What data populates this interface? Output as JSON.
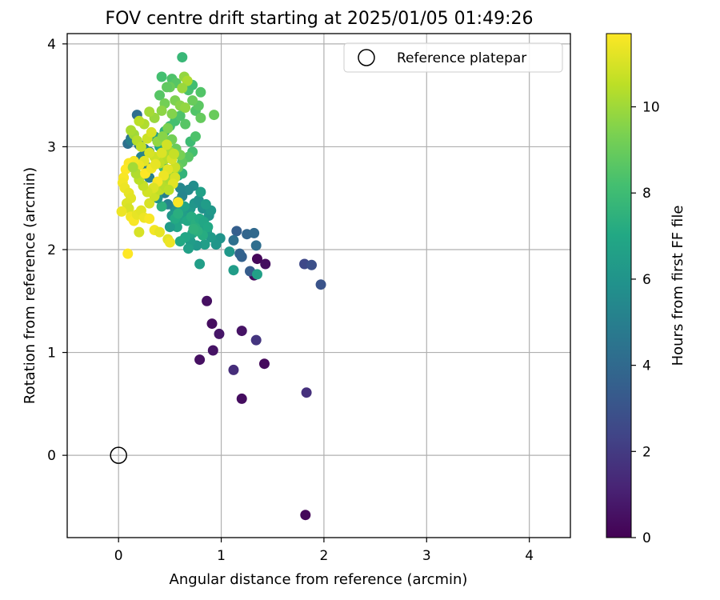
{
  "chart_data": {
    "type": "scatter",
    "title": "FOV centre drift starting at 2025/01/05 01:49:26",
    "xlabel": "Angular distance from reference (arcmin)",
    "ylabel": "Rotation from reference (arcmin)",
    "xlim": [
      -0.5,
      4.4
    ],
    "ylim": [
      -0.8,
      4.1
    ],
    "xticks": [
      0,
      1,
      2,
      3,
      4
    ],
    "yticks": [
      0,
      1,
      2,
      3,
      4
    ],
    "grid": true,
    "legend": {
      "placement": "top-right",
      "entries": [
        "Reference platepar"
      ]
    },
    "reference_point": {
      "label": "Reference platepar",
      "x": 0,
      "y": 0
    },
    "colorbar": {
      "label": "Hours from first FF file",
      "min": 0,
      "max": 11.7,
      "ticks": [
        0,
        2,
        4,
        6,
        8,
        10
      ],
      "colormap": "viridis"
    },
    "columns": [
      "x",
      "y",
      "hours"
    ],
    "points": [
      [
        1.82,
        -0.58,
        0.2
      ],
      [
        1.2,
        0.55,
        0.4
      ],
      [
        1.83,
        0.61,
        1.6
      ],
      [
        1.12,
        0.83,
        1.5
      ],
      [
        0.79,
        0.93,
        0.5
      ],
      [
        1.42,
        0.89,
        0.3
      ],
      [
        0.92,
        1.02,
        0.6
      ],
      [
        1.34,
        1.12,
        1.8
      ],
      [
        0.91,
        1.28,
        0.4
      ],
      [
        0.98,
        1.18,
        0.7
      ],
      [
        1.2,
        1.21,
        0.6
      ],
      [
        0.86,
        1.5,
        0.5
      ],
      [
        1.32,
        1.75,
        0.3
      ],
      [
        1.35,
        1.91,
        0.2
      ],
      [
        1.43,
        1.86,
        0.4
      ],
      [
        1.81,
        1.86,
        2.5
      ],
      [
        1.88,
        1.85,
        2.8
      ],
      [
        1.97,
        1.66,
        3.0
      ],
      [
        1.28,
        1.79,
        3.4
      ],
      [
        1.2,
        1.93,
        3.6
      ],
      [
        1.18,
        1.96,
        3.7
      ],
      [
        1.15,
        2.18,
        3.5
      ],
      [
        1.25,
        2.15,
        3.8
      ],
      [
        1.32,
        2.16,
        4.0
      ],
      [
        1.34,
        2.04,
        4.2
      ],
      [
        1.12,
        2.09,
        4.3
      ],
      [
        1.08,
        1.98,
        6.2
      ],
      [
        1.12,
        1.8,
        6.4
      ],
      [
        1.35,
        1.76,
        6.6
      ],
      [
        0.79,
        1.86,
        6.5
      ],
      [
        0.99,
        2.11,
        6.0
      ],
      [
        0.95,
        2.05,
        6.1
      ],
      [
        0.9,
        2.12,
        6.3
      ],
      [
        0.86,
        2.18,
        6.4
      ],
      [
        0.84,
        2.05,
        6.5
      ],
      [
        0.8,
        2.23,
        6.7
      ],
      [
        0.76,
        2.04,
        6.2
      ],
      [
        0.7,
        2.08,
        6.4
      ],
      [
        0.68,
        2.01,
        6.6
      ],
      [
        0.72,
        2.16,
        6.8
      ],
      [
        0.65,
        2.12,
        6.9
      ],
      [
        0.6,
        2.08,
        7.0
      ],
      [
        0.57,
        2.22,
        6.8
      ],
      [
        0.62,
        2.3,
        6.7
      ],
      [
        0.66,
        2.35,
        6.5
      ],
      [
        0.7,
        2.4,
        6.3
      ],
      [
        0.74,
        2.45,
        6.1
      ],
      [
        0.78,
        2.48,
        5.9
      ],
      [
        0.82,
        2.4,
        5.8
      ],
      [
        0.88,
        2.33,
        6.0
      ],
      [
        0.9,
        2.38,
        6.2
      ],
      [
        0.85,
        2.44,
        6.4
      ],
      [
        0.8,
        2.56,
        6.6
      ],
      [
        0.73,
        2.62,
        5.7
      ],
      [
        0.68,
        2.58,
        5.5
      ],
      [
        0.62,
        2.52,
        5.3
      ],
      [
        0.58,
        2.47,
        5.6
      ],
      [
        0.55,
        2.4,
        5.9
      ],
      [
        0.52,
        2.33,
        6.1
      ],
      [
        0.5,
        2.22,
        6.3
      ],
      [
        0.48,
        2.44,
        5.2
      ],
      [
        0.45,
        2.55,
        5.0
      ],
      [
        0.6,
        2.6,
        5.4
      ],
      [
        0.64,
        2.42,
        6.8
      ],
      [
        0.67,
        2.28,
        7.0
      ],
      [
        0.71,
        2.32,
        7.2
      ],
      [
        0.75,
        2.25,
        7.3
      ],
      [
        0.79,
        2.3,
        7.1
      ],
      [
        0.83,
        2.27,
        6.9
      ],
      [
        0.87,
        2.22,
        7.0
      ],
      [
        0.82,
        2.14,
        7.2
      ],
      [
        0.77,
        2.18,
        7.4
      ],
      [
        0.73,
        2.2,
        7.5
      ],
      [
        0.55,
        2.3,
        7.1
      ],
      [
        0.58,
        2.35,
        7.3
      ],
      [
        0.42,
        2.42,
        7.4
      ],
      [
        0.38,
        2.5,
        6.0
      ],
      [
        0.35,
        2.55,
        5.5
      ],
      [
        0.4,
        2.6,
        6.2
      ],
      [
        0.46,
        2.65,
        6.4
      ],
      [
        0.5,
        2.7,
        6.6
      ],
      [
        0.54,
        2.75,
        6.8
      ],
      [
        0.58,
        2.72,
        7.0
      ],
      [
        0.62,
        2.74,
        7.6
      ],
      [
        0.44,
        2.8,
        7.8
      ],
      [
        0.3,
        2.7,
        5.0
      ],
      [
        0.28,
        2.8,
        4.8
      ],
      [
        0.25,
        2.98,
        4.6
      ],
      [
        0.2,
        3.02,
        4.5
      ],
      [
        0.12,
        3.08,
        4.4
      ],
      [
        0.09,
        3.03,
        4.3
      ],
      [
        0.18,
        3.31,
        4.2
      ],
      [
        0.12,
        3.06,
        5.0
      ],
      [
        0.22,
        2.9,
        5.2
      ],
      [
        0.3,
        2.95,
        6.0
      ],
      [
        0.35,
        3.1,
        6.5
      ],
      [
        0.4,
        3.0,
        7.0
      ],
      [
        0.45,
        3.15,
        7.5
      ],
      [
        0.5,
        3.2,
        8.0
      ],
      [
        0.55,
        3.25,
        8.2
      ],
      [
        0.6,
        3.3,
        8.4
      ],
      [
        0.65,
        3.22,
        8.6
      ],
      [
        0.7,
        3.05,
        8.0
      ],
      [
        0.72,
        2.95,
        8.2
      ],
      [
        0.75,
        3.1,
        8.4
      ],
      [
        0.68,
        2.9,
        8.6
      ],
      [
        0.62,
        2.85,
        8.8
      ],
      [
        0.58,
        2.8,
        9.0
      ],
      [
        0.75,
        3.35,
        8.5
      ],
      [
        0.78,
        3.4,
        8.7
      ],
      [
        0.8,
        3.28,
        8.9
      ],
      [
        0.72,
        3.45,
        9.0
      ],
      [
        0.68,
        3.55,
        8.3
      ],
      [
        0.72,
        3.6,
        8.1
      ],
      [
        0.8,
        3.53,
        8.5
      ],
      [
        0.62,
        3.87,
        7.8
      ],
      [
        0.42,
        3.68,
        8.2
      ],
      [
        0.52,
        3.66,
        8.4
      ],
      [
        0.56,
        3.62,
        8.6
      ],
      [
        0.64,
        3.68,
        9.8
      ],
      [
        0.67,
        3.64,
        10.2
      ],
      [
        0.62,
        3.57,
        9.9
      ],
      [
        0.5,
        3.58,
        9.0
      ],
      [
        0.47,
        3.58,
        8.8
      ],
      [
        0.4,
        3.5,
        8.6
      ],
      [
        0.45,
        3.42,
        9.2
      ],
      [
        0.55,
        3.45,
        9.4
      ],
      [
        0.6,
        3.4,
        9.6
      ],
      [
        0.65,
        3.38,
        9.8
      ],
      [
        0.93,
        3.31,
        9.0
      ],
      [
        0.52,
        3.32,
        9.5
      ],
      [
        0.42,
        3.35,
        9.7
      ],
      [
        0.35,
        3.28,
        9.9
      ],
      [
        0.3,
        3.34,
        10.1
      ],
      [
        0.25,
        3.22,
        10.3
      ],
      [
        0.2,
        3.25,
        10.5
      ],
      [
        0.15,
        3.12,
        10.0
      ],
      [
        0.12,
        3.16,
        10.2
      ],
      [
        0.18,
        3.06,
        10.4
      ],
      [
        0.22,
        3.0,
        10.6
      ],
      [
        0.28,
        3.08,
        10.8
      ],
      [
        0.32,
        3.14,
        11.0
      ],
      [
        0.38,
        3.05,
        9.8
      ],
      [
        0.43,
        3.1,
        9.6
      ],
      [
        0.48,
        3.18,
        9.4
      ],
      [
        0.52,
        3.07,
        9.2
      ],
      [
        0.56,
        2.98,
        9.0
      ],
      [
        0.6,
        2.92,
        9.3
      ],
      [
        0.5,
        2.95,
        10.2
      ],
      [
        0.45,
        2.88,
        10.4
      ],
      [
        0.4,
        2.84,
        10.6
      ],
      [
        0.35,
        2.9,
        10.8
      ],
      [
        0.3,
        2.94,
        11.0
      ],
      [
        0.25,
        2.86,
        11.2
      ],
      [
        0.2,
        2.82,
        11.4
      ],
      [
        0.15,
        2.86,
        11.5
      ],
      [
        0.1,
        2.84,
        11.6
      ],
      [
        0.07,
        2.78,
        11.7
      ],
      [
        0.05,
        2.7,
        11.6
      ],
      [
        0.04,
        2.65,
        11.5
      ],
      [
        0.06,
        2.6,
        11.4
      ],
      [
        0.1,
        2.55,
        11.3
      ],
      [
        0.12,
        2.5,
        11.2
      ],
      [
        0.08,
        2.45,
        11.1
      ],
      [
        0.1,
        2.4,
        11.0
      ],
      [
        0.03,
        2.37,
        11.4
      ],
      [
        0.12,
        2.32,
        11.5
      ],
      [
        0.15,
        2.28,
        11.6
      ],
      [
        0.18,
        2.34,
        11.3
      ],
      [
        0.22,
        2.38,
        11.2
      ],
      [
        0.25,
        2.31,
        11.4
      ],
      [
        0.3,
        2.3,
        11.6
      ],
      [
        0.2,
        2.17,
        11.0
      ],
      [
        0.35,
        2.19,
        11.5
      ],
      [
        0.4,
        2.17,
        11.3
      ],
      [
        0.48,
        2.1,
        11.2
      ],
      [
        0.5,
        2.07,
        11.4
      ],
      [
        0.58,
        2.46,
        11.6
      ],
      [
        0.09,
        1.96,
        11.7
      ],
      [
        0.3,
        2.45,
        11.0
      ],
      [
        0.35,
        2.52,
        10.8
      ],
      [
        0.4,
        2.58,
        10.6
      ],
      [
        0.45,
        2.62,
        10.4
      ],
      [
        0.5,
        2.68,
        10.2
      ],
      [
        0.53,
        2.74,
        10.0
      ],
      [
        0.55,
        2.8,
        10.8
      ],
      [
        0.52,
        2.88,
        11.0
      ],
      [
        0.48,
        2.78,
        11.2
      ],
      [
        0.44,
        2.72,
        11.4
      ],
      [
        0.38,
        2.66,
        11.6
      ],
      [
        0.34,
        2.6,
        11.1
      ],
      [
        0.28,
        2.56,
        10.9
      ],
      [
        0.24,
        2.62,
        10.7
      ],
      [
        0.2,
        2.68,
        10.5
      ],
      [
        0.17,
        2.74,
        10.3
      ],
      [
        0.14,
        2.8,
        10.1
      ],
      [
        0.26,
        2.74,
        11.7
      ],
      [
        0.32,
        2.79,
        11.5
      ],
      [
        0.36,
        2.83,
        11.3
      ],
      [
        0.42,
        2.94,
        11.1
      ],
      [
        0.47,
        3.02,
        10.9
      ],
      [
        0.54,
        2.93,
        10.7
      ],
      [
        0.55,
        2.7,
        11.0
      ],
      [
        0.53,
        2.64,
        11.2
      ],
      [
        0.49,
        2.58,
        10.5
      ]
    ]
  }
}
